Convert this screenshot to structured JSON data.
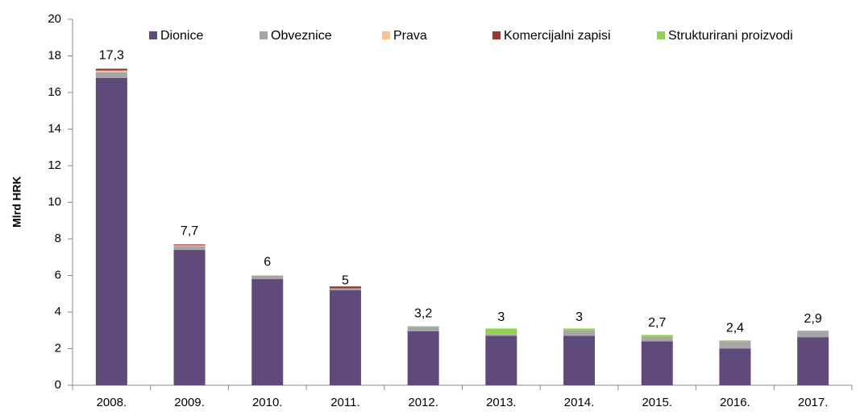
{
  "chart_data": {
    "type": "stacked_bar",
    "y_label": "Mlrd HRK",
    "categories": [
      "2008.",
      "2009.",
      "2010.",
      "2011.",
      "2012.",
      "2013.",
      "2014.",
      "2015.",
      "2016.",
      "2017."
    ],
    "series": [
      {
        "name": "Dionice",
        "color": "#604a7b",
        "values": [
          16.8,
          7.4,
          5.8,
          5.2,
          2.95,
          2.7,
          2.7,
          2.4,
          2.0,
          2.63
        ]
      },
      {
        "name": "Obveznice",
        "color": "#a6a6a6",
        "values": [
          0.3,
          0.2,
          0.2,
          0.1,
          0.25,
          0.1,
          0.3,
          0.25,
          0.4,
          0.35
        ]
      },
      {
        "name": "Prava",
        "color": "#fac090",
        "values": [
          0.1,
          0.05,
          0,
          0,
          0,
          0,
          0,
          0,
          0,
          0
        ]
      },
      {
        "name": "Komercijalni zapisi",
        "color": "#953735",
        "values": [
          0.1,
          0.05,
          0,
          0.1,
          0,
          0,
          0,
          0,
          0,
          0
        ]
      },
      {
        "name": "Strukturirani proizvodi",
        "color": "#92d050",
        "values": [
          0,
          0,
          0,
          0,
          0.03,
          0.3,
          0.1,
          0.1,
          0.05,
          0
        ]
      }
    ],
    "totals": [
      17.3,
      7.7,
      6,
      5,
      3.2,
      3,
      3,
      2.7,
      2.4,
      2.9
    ],
    "total_labels": [
      "17,3",
      "7,7",
      "6",
      "5",
      "3,2",
      "3",
      "3",
      "2,7",
      "2,4",
      "2,9"
    ],
    "ylim": [
      0,
      20
    ],
    "yticks": [
      0,
      2,
      4,
      6,
      8,
      10,
      12,
      14,
      16,
      18,
      20
    ],
    "legend": "top"
  }
}
